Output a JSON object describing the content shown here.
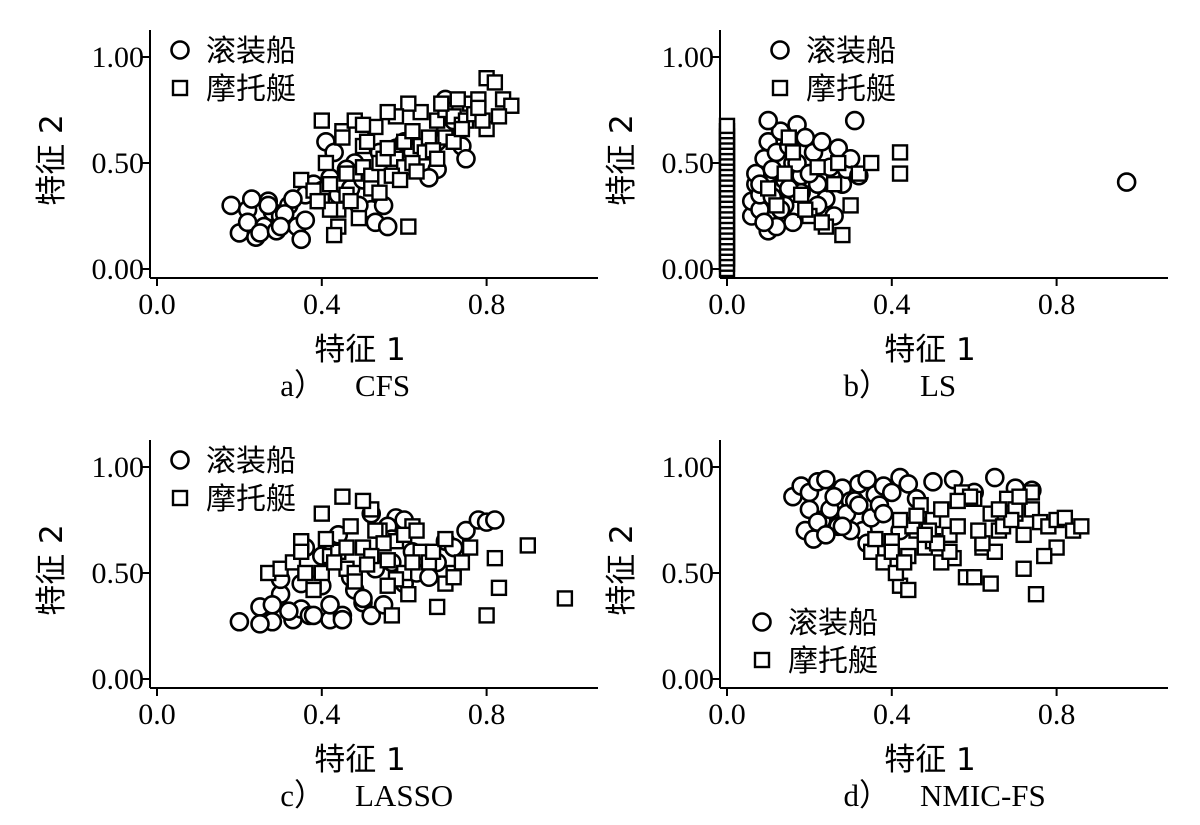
{
  "legend": {
    "circle_label": "滚装船",
    "square_label": "摩托艇"
  },
  "colors": {
    "marker_stroke": "#000000",
    "marker_fill": "#ffffff"
  },
  "chart_data": [
    {
      "type": "scatter",
      "panel": "a",
      "caption_letter": "a）",
      "caption_method": "CFS",
      "xlabel": "特征 1",
      "ylabel": "特征 2",
      "xlim": [
        0.0,
        1.0
      ],
      "ylim": [
        0.0,
        1.0
      ],
      "xticks": [
        "0.0",
        "0.4",
        "0.8"
      ],
      "yticks": [
        "0.00",
        "0.50",
        "1.00"
      ],
      "legend_position": "top-left",
      "series": [
        {
          "name": "滚装船",
          "marker": "circle",
          "x": [
            0.18,
            0.22,
            0.2,
            0.24,
            0.22,
            0.26,
            0.25,
            0.28,
            0.3,
            0.27,
            0.32,
            0.34,
            0.29,
            0.31,
            0.35,
            0.36,
            0.33,
            0.38,
            0.4,
            0.42,
            0.44,
            0.45,
            0.47,
            0.5,
            0.52,
            0.55,
            0.48,
            0.54,
            0.58,
            0.6,
            0.62,
            0.65,
            0.68,
            0.7,
            0.72,
            0.74,
            0.75,
            0.68,
            0.66,
            0.7,
            0.41,
            0.43,
            0.46,
            0.49,
            0.53,
            0.56,
            0.23,
            0.27,
            0.3,
            0.36
          ],
          "y": [
            0.3,
            0.28,
            0.17,
            0.15,
            0.22,
            0.2,
            0.17,
            0.27,
            0.25,
            0.32,
            0.3,
            0.2,
            0.18,
            0.26,
            0.14,
            0.35,
            0.33,
            0.4,
            0.37,
            0.43,
            0.35,
            0.4,
            0.38,
            0.42,
            0.28,
            0.3,
            0.5,
            0.55,
            0.57,
            0.6,
            0.55,
            0.5,
            0.6,
            0.65,
            0.7,
            0.58,
            0.52,
            0.47,
            0.43,
            0.8,
            0.6,
            0.55,
            0.47,
            0.3,
            0.22,
            0.2,
            0.33,
            0.3,
            0.2,
            0.23
          ]
        },
        {
          "name": "摩托艇",
          "marker": "square",
          "x": [
            0.35,
            0.38,
            0.4,
            0.42,
            0.44,
            0.46,
            0.48,
            0.5,
            0.52,
            0.54,
            0.56,
            0.58,
            0.6,
            0.62,
            0.64,
            0.66,
            0.68,
            0.7,
            0.72,
            0.74,
            0.76,
            0.78,
            0.8,
            0.82,
            0.84,
            0.86,
            0.4,
            0.45,
            0.5,
            0.55,
            0.6,
            0.65,
            0.7,
            0.75,
            0.8,
            0.42,
            0.47,
            0.52,
            0.57,
            0.62,
            0.67,
            0.72,
            0.77,
            0.44,
            0.49,
            0.54,
            0.59,
            0.64,
            0.69,
            0.74,
            0.79,
            0.41,
            0.46,
            0.51,
            0.56,
            0.61,
            0.43,
            0.48,
            0.53,
            0.58,
            0.63,
            0.68,
            0.73,
            0.78,
            0.83,
            0.39,
            0.45,
            0.5,
            0.56,
            0.61
          ],
          "y": [
            0.42,
            0.37,
            0.32,
            0.4,
            0.28,
            0.35,
            0.45,
            0.48,
            0.44,
            0.5,
            0.55,
            0.52,
            0.6,
            0.65,
            0.58,
            0.62,
            0.7,
            0.75,
            0.72,
            0.68,
            0.78,
            0.8,
            0.9,
            0.88,
            0.8,
            0.77,
            0.7,
            0.65,
            0.58,
            0.52,
            0.48,
            0.55,
            0.62,
            0.7,
            0.66,
            0.28,
            0.32,
            0.38,
            0.44,
            0.5,
            0.56,
            0.6,
            0.73,
            0.2,
            0.24,
            0.36,
            0.42,
            0.74,
            0.78,
            0.66,
            0.7,
            0.5,
            0.45,
            0.6,
            0.57,
            0.78,
            0.16,
            0.7,
            0.67,
            0.72,
            0.46,
            0.52,
            0.8,
            0.76,
            0.72,
            0.32,
            0.62,
            0.68,
            0.74,
            0.2
          ]
        }
      ]
    },
    {
      "type": "scatter",
      "panel": "b",
      "caption_letter": "b）",
      "caption_method": "LS",
      "xlabel": "特征 1",
      "ylabel": "特征 2",
      "xlim": [
        0.0,
        1.0
      ],
      "ylim": [
        0.0,
        1.0
      ],
      "xticks": [
        "0.0",
        "0.4",
        "0.8"
      ],
      "yticks": [
        "0.00",
        "0.50",
        "1.00"
      ],
      "legend_position": "top-center",
      "series": [
        {
          "name": "滚装船",
          "marker": "circle",
          "x": [
            0.06,
            0.06,
            0.07,
            0.07,
            0.08,
            0.08,
            0.09,
            0.1,
            0.1,
            0.11,
            0.12,
            0.12,
            0.13,
            0.14,
            0.14,
            0.15,
            0.16,
            0.16,
            0.17,
            0.18,
            0.18,
            0.19,
            0.2,
            0.21,
            0.22,
            0.23,
            0.24,
            0.25,
            0.26,
            0.27,
            0.28,
            0.29,
            0.3,
            0.31,
            0.32,
            0.1,
            0.12,
            0.15,
            0.17,
            0.2,
            0.22,
            0.08,
            0.09,
            0.11,
            0.13,
            0.97
          ],
          "y": [
            0.25,
            0.32,
            0.4,
            0.45,
            0.28,
            0.35,
            0.52,
            0.6,
            0.18,
            0.47,
            0.55,
            0.38,
            0.65,
            0.3,
            0.42,
            0.58,
            0.22,
            0.5,
            0.68,
            0.36,
            0.44,
            0.62,
            0.27,
            0.55,
            0.4,
            0.6,
            0.33,
            0.48,
            0.25,
            0.57,
            0.4,
            0.47,
            0.52,
            0.7,
            0.44,
            0.7,
            0.2,
            0.38,
            0.5,
            0.45,
            0.3,
            0.4,
            0.22,
            0.34,
            0.28,
            0.41
          ]
        },
        {
          "name": "摩托艇",
          "marker": "square",
          "x": [
            0.0,
            0.0,
            0.0,
            0.0,
            0.0,
            0.0,
            0.0,
            0.0,
            0.0,
            0.0,
            0.0,
            0.0,
            0.0,
            0.0,
            0.0,
            0.0,
            0.0,
            0.0,
            0.0,
            0.0,
            0.0,
            0.0,
            0.0,
            0.0,
            0.0,
            0.0,
            0.0,
            0.0,
            0.1,
            0.12,
            0.14,
            0.16,
            0.18,
            0.2,
            0.22,
            0.24,
            0.26,
            0.28,
            0.3,
            0.32,
            0.35,
            0.42,
            0.42,
            0.15,
            0.19,
            0.23,
            0.27
          ],
          "y": [
            0.0,
            0.025,
            0.05,
            0.075,
            0.1,
            0.125,
            0.15,
            0.175,
            0.2,
            0.225,
            0.25,
            0.275,
            0.3,
            0.325,
            0.35,
            0.375,
            0.4,
            0.425,
            0.45,
            0.475,
            0.5,
            0.525,
            0.55,
            0.575,
            0.6,
            0.625,
            0.65,
            0.675,
            0.38,
            0.3,
            0.45,
            0.55,
            0.35,
            0.25,
            0.48,
            0.2,
            0.4,
            0.16,
            0.3,
            0.45,
            0.5,
            0.55,
            0.45,
            0.62,
            0.28,
            0.22,
            0.5
          ]
        }
      ]
    },
    {
      "type": "scatter",
      "panel": "c",
      "caption_letter": "c）",
      "caption_method": "LASSO",
      "xlabel": "特征 1",
      "ylabel": "特征 2",
      "xlim": [
        0.0,
        1.0
      ],
      "ylim": [
        0.0,
        1.0
      ],
      "xticks": [
        "0.0",
        "0.4",
        "0.8"
      ],
      "yticks": [
        "0.00",
        "0.50",
        "1.00"
      ],
      "legend_position": "top-left",
      "series": [
        {
          "name": "滚装船",
          "marker": "circle",
          "x": [
            0.2,
            0.25,
            0.28,
            0.3,
            0.33,
            0.35,
            0.37,
            0.4,
            0.42,
            0.45,
            0.47,
            0.5,
            0.52,
            0.55,
            0.57,
            0.58,
            0.6,
            0.62,
            0.65,
            0.68,
            0.7,
            0.72,
            0.75,
            0.78,
            0.8,
            0.82,
            0.3,
            0.32,
            0.35,
            0.38,
            0.42,
            0.45,
            0.48,
            0.5,
            0.53,
            0.56,
            0.6,
            0.63,
            0.66,
            0.36,
            0.4,
            0.44,
            0.52,
            0.57,
            0.25,
            0.28
          ],
          "y": [
            0.27,
            0.34,
            0.27,
            0.4,
            0.28,
            0.33,
            0.3,
            0.44,
            0.28,
            0.3,
            0.48,
            0.36,
            0.3,
            0.35,
            0.55,
            0.76,
            0.75,
            0.6,
            0.5,
            0.55,
            0.65,
            0.62,
            0.7,
            0.75,
            0.74,
            0.75,
            0.47,
            0.32,
            0.45,
            0.3,
            0.35,
            0.28,
            0.42,
            0.38,
            0.52,
            0.72,
            0.45,
            0.5,
            0.48,
            0.62,
            0.58,
            0.68,
            0.78,
            0.66,
            0.26,
            0.35
          ]
        },
        {
          "name": "摩托艇",
          "marker": "square",
          "x": [
            0.27,
            0.3,
            0.33,
            0.35,
            0.38,
            0.4,
            0.42,
            0.44,
            0.46,
            0.48,
            0.5,
            0.52,
            0.54,
            0.56,
            0.58,
            0.6,
            0.62,
            0.64,
            0.66,
            0.68,
            0.7,
            0.72,
            0.74,
            0.76,
            0.8,
            0.82,
            0.83,
            0.9,
            0.99,
            0.4,
            0.45,
            0.47,
            0.5,
            0.53,
            0.55,
            0.58,
            0.6,
            0.63,
            0.35,
            0.38,
            0.43,
            0.48,
            0.52,
            0.57,
            0.62,
            0.67,
            0.7,
            0.72,
            0.36,
            0.41,
            0.46,
            0.51,
            0.56,
            0.61
          ],
          "y": [
            0.5,
            0.52,
            0.55,
            0.65,
            0.45,
            0.5,
            0.58,
            0.6,
            0.52,
            0.5,
            0.62,
            0.8,
            0.7,
            0.56,
            0.65,
            0.5,
            0.72,
            0.6,
            0.55,
            0.34,
            0.45,
            0.5,
            0.55,
            0.62,
            0.3,
            0.57,
            0.43,
            0.63,
            0.38,
            0.78,
            0.86,
            0.72,
            0.84,
            0.7,
            0.64,
            0.47,
            0.68,
            0.7,
            0.6,
            0.42,
            0.55,
            0.46,
            0.58,
            0.3,
            0.55,
            0.6,
            0.66,
            0.48,
            0.5,
            0.66,
            0.62,
            0.54,
            0.44,
            0.4
          ]
        }
      ]
    },
    {
      "type": "scatter",
      "panel": "d",
      "caption_letter": "d）",
      "caption_method": "NMIC-FS",
      "xlabel": "特征 1",
      "ylabel": "特征 2",
      "xlim": [
        0.0,
        1.0
      ],
      "ylim": [
        0.0,
        1.0
      ],
      "xticks": [
        "0.0",
        "0.4",
        "0.8"
      ],
      "yticks": [
        "0.00",
        "0.50",
        "1.00"
      ],
      "legend_position": "bottom-left",
      "series": [
        {
          "name": "滚装船",
          "marker": "circle",
          "x": [
            0.16,
            0.18,
            0.2,
            0.22,
            0.24,
            0.26,
            0.28,
            0.3,
            0.32,
            0.34,
            0.36,
            0.38,
            0.4,
            0.42,
            0.44,
            0.46,
            0.5,
            0.55,
            0.6,
            0.65,
            0.7,
            0.74,
            0.19,
            0.21,
            0.23,
            0.25,
            0.27,
            0.29,
            0.31,
            0.33,
            0.35,
            0.37,
            0.2,
            0.22,
            0.26,
            0.3,
            0.34,
            0.38,
            0.42,
            0.46,
            0.24,
            0.28,
            0.32
          ],
          "y": [
            0.86,
            0.91,
            0.88,
            0.93,
            0.94,
            0.82,
            0.9,
            0.84,
            0.92,
            0.94,
            0.87,
            0.91,
            0.88,
            0.95,
            0.92,
            0.85,
            0.93,
            0.94,
            0.88,
            0.95,
            0.9,
            0.89,
            0.7,
            0.66,
            0.75,
            0.8,
            0.72,
            0.78,
            0.84,
            0.7,
            0.76,
            0.82,
            0.8,
            0.74,
            0.86,
            0.7,
            0.64,
            0.78,
            0.7,
            0.74,
            0.68,
            0.72,
            0.82
          ]
        },
        {
          "name": "摩托艇",
          "marker": "square",
          "x": [
            0.35,
            0.38,
            0.4,
            0.42,
            0.44,
            0.46,
            0.48,
            0.5,
            0.52,
            0.54,
            0.56,
            0.58,
            0.6,
            0.62,
            0.64,
            0.66,
            0.68,
            0.7,
            0.72,
            0.74,
            0.76,
            0.78,
            0.8,
            0.82,
            0.84,
            0.86,
            0.4,
            0.45,
            0.5,
            0.55,
            0.6,
            0.65,
            0.7,
            0.75,
            0.8,
            0.42,
            0.47,
            0.52,
            0.57,
            0.62,
            0.67,
            0.72,
            0.77,
            0.44,
            0.49,
            0.54,
            0.59,
            0.64,
            0.69,
            0.74,
            0.36,
            0.41,
            0.46,
            0.51,
            0.56,
            0.61,
            0.66,
            0.71,
            0.43,
            0.48
          ],
          "y": [
            0.6,
            0.55,
            0.65,
            0.44,
            0.58,
            0.7,
            0.62,
            0.75,
            0.8,
            0.68,
            0.72,
            0.48,
            0.85,
            0.62,
            0.78,
            0.7,
            0.85,
            0.78,
            0.52,
            0.8,
            0.74,
            0.72,
            0.75,
            0.76,
            0.7,
            0.72,
            0.6,
            0.72,
            0.65,
            0.57,
            0.48,
            0.6,
            0.8,
            0.4,
            0.62,
            0.75,
            0.82,
            0.55,
            0.88,
            0.64,
            0.72,
            0.68,
            0.58,
            0.42,
            0.7,
            0.6,
            0.86,
            0.45,
            0.75,
            0.88,
            0.66,
            0.5,
            0.77,
            0.64,
            0.84,
            0.7,
            0.8,
            0.86,
            0.55,
            0.68
          ]
        }
      ]
    }
  ]
}
